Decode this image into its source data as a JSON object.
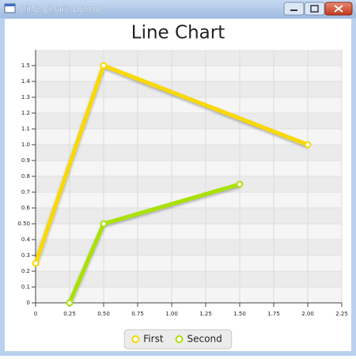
{
  "window": {
    "title": "Line Chart Demo"
  },
  "chart_data": {
    "type": "line",
    "title": "Line Chart",
    "series": [
      {
        "name": "First",
        "color": "#f9d900",
        "x": [
          0,
          0.5,
          2.0
        ],
        "values": [
          0.25,
          1.5,
          1.0
        ]
      },
      {
        "name": "Second",
        "color": "#a9e200",
        "x": [
          0.25,
          0.5,
          1.5
        ],
        "values": [
          0,
          0.5,
          0.75
        ]
      }
    ],
    "xlim": [
      0,
      2.25
    ],
    "xticks": [
      0,
      0.25,
      {
        "value": 0.5,
        "label": "0.50"
      },
      0.75,
      {
        "value": 1,
        "label": "1.00"
      },
      1.25,
      {
        "value": 1.5,
        "label": "1.50"
      },
      1.75,
      {
        "value": 2,
        "label": "2.00"
      },
      2.25
    ],
    "ylim": [
      0,
      1.6
    ],
    "yticks": [
      0,
      0.1,
      0.2,
      0.3,
      0.4,
      {
        "value": 0.5,
        "label": "0.50"
      },
      0.6,
      0.7,
      0.8,
      0.9,
      {
        "value": 1,
        "label": "1.0"
      },
      1.1,
      1.2,
      1.3,
      1.4,
      1.5
    ],
    "grid": true,
    "legend": "bottom"
  }
}
